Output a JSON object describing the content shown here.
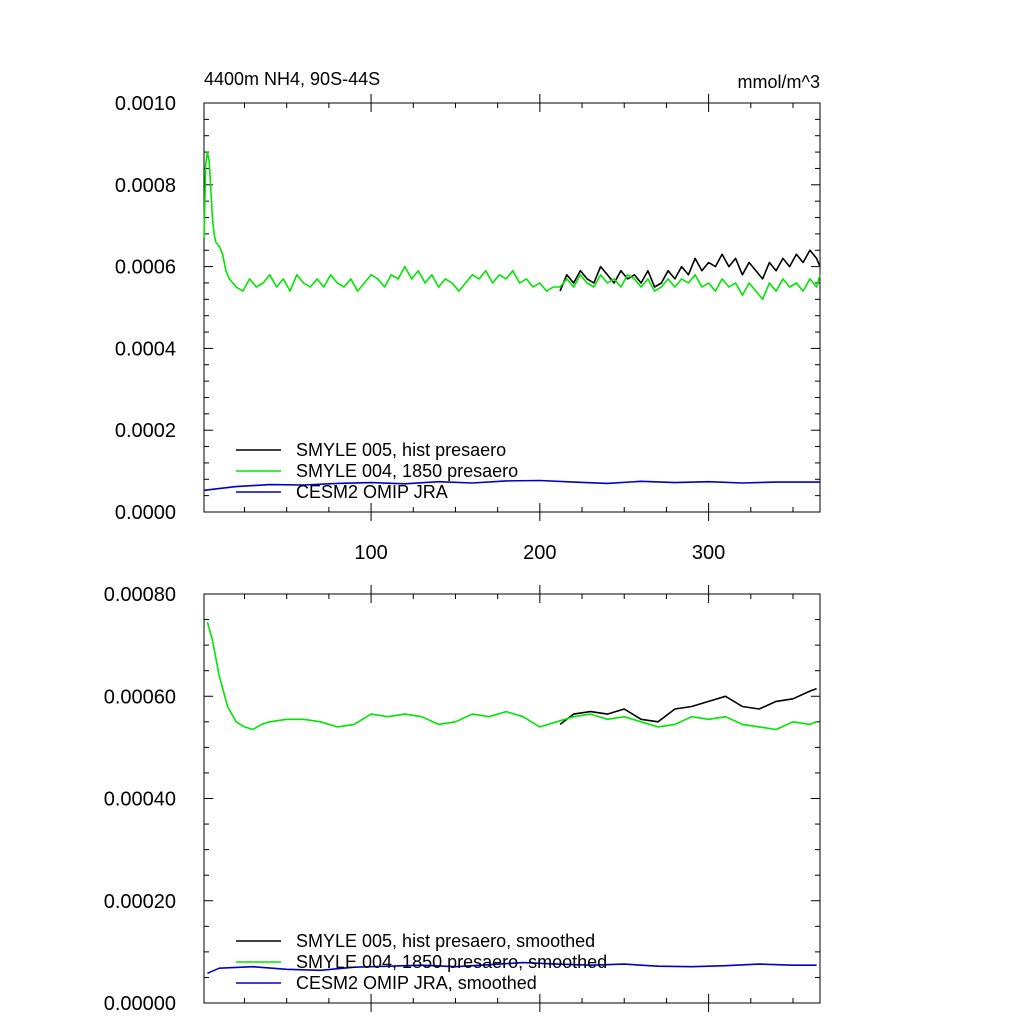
{
  "chart_data": [
    {
      "type": "line",
      "title": "4400m NH4, 90S-44S",
      "units": "mmol/m^3",
      "xlim": [
        1,
        366
      ],
      "ylim": [
        0,
        0.001
      ],
      "xticks": [
        100,
        200,
        300
      ],
      "xtick_labels": [
        "100",
        "200",
        "300"
      ],
      "yticks": [
        0,
        0.0002,
        0.0004,
        0.0006,
        0.0008,
        0.001
      ],
      "ytick_labels": [
        "0.0000",
        "0.0002",
        "0.0004",
        "0.0006",
        "0.0008",
        "0.0010"
      ],
      "legend_position": "bottom-left",
      "series": [
        {
          "name": "SMYLE 005, hist presaero",
          "color": "#000000",
          "x": [
            212,
            216,
            220,
            224,
            228,
            232,
            236,
            240,
            244,
            248,
            252,
            256,
            260,
            264,
            268,
            272,
            276,
            280,
            284,
            288,
            292,
            296,
            300,
            304,
            308,
            312,
            316,
            320,
            324,
            328,
            332,
            336,
            340,
            344,
            348,
            352,
            356,
            360,
            364,
            366
          ],
          "y": [
            0.00054,
            0.00058,
            0.00056,
            0.00059,
            0.00057,
            0.00056,
            0.0006,
            0.00058,
            0.00056,
            0.00059,
            0.00057,
            0.00058,
            0.00056,
            0.00059,
            0.00055,
            0.00056,
            0.00059,
            0.00057,
            0.0006,
            0.00058,
            0.00062,
            0.00059,
            0.00061,
            0.0006,
            0.00063,
            0.0006,
            0.00062,
            0.00058,
            0.00061,
            0.00059,
            0.00057,
            0.00061,
            0.00059,
            0.00062,
            0.0006,
            0.00063,
            0.00061,
            0.00064,
            0.00062,
            0.0006
          ]
        },
        {
          "name": "SMYLE 004, 1850 presaero",
          "color": "#00e600",
          "x": [
            1,
            2,
            3,
            4,
            5,
            6,
            7,
            8,
            10,
            12,
            14,
            16,
            20,
            24,
            28,
            32,
            36,
            40,
            44,
            48,
            52,
            56,
            60,
            64,
            68,
            72,
            76,
            80,
            84,
            88,
            92,
            96,
            100,
            104,
            108,
            112,
            116,
            120,
            124,
            128,
            132,
            136,
            140,
            144,
            148,
            152,
            156,
            160,
            164,
            168,
            172,
            176,
            180,
            184,
            188,
            192,
            196,
            200,
            204,
            208,
            212,
            216,
            220,
            224,
            228,
            232,
            236,
            240,
            244,
            248,
            252,
            256,
            260,
            264,
            268,
            272,
            276,
            280,
            284,
            288,
            292,
            296,
            300,
            304,
            308,
            312,
            316,
            320,
            324,
            328,
            332,
            336,
            340,
            344,
            348,
            352,
            356,
            360,
            364,
            366
          ],
          "y": [
            0.00067,
            0.00085,
            0.00088,
            0.00086,
            0.00079,
            0.00072,
            0.00068,
            0.00066,
            0.00065,
            0.00063,
            0.00059,
            0.00057,
            0.00055,
            0.00054,
            0.00057,
            0.00055,
            0.00056,
            0.00058,
            0.00055,
            0.00057,
            0.00054,
            0.00058,
            0.00056,
            0.00055,
            0.00057,
            0.00055,
            0.00058,
            0.00056,
            0.00055,
            0.00057,
            0.00054,
            0.00056,
            0.00058,
            0.00057,
            0.00055,
            0.00058,
            0.00057,
            0.0006,
            0.00057,
            0.00059,
            0.00056,
            0.00058,
            0.00055,
            0.00057,
            0.00056,
            0.00054,
            0.00056,
            0.00058,
            0.00057,
            0.00059,
            0.00056,
            0.00058,
            0.00057,
            0.00059,
            0.00056,
            0.00057,
            0.00055,
            0.00056,
            0.00054,
            0.00055,
            0.00055,
            0.00057,
            0.00055,
            0.00058,
            0.00056,
            0.00055,
            0.00058,
            0.00056,
            0.00057,
            0.00055,
            0.00058,
            0.00057,
            0.00055,
            0.00057,
            0.00054,
            0.00055,
            0.00057,
            0.00055,
            0.00057,
            0.00056,
            0.00058,
            0.00055,
            0.00056,
            0.00054,
            0.00057,
            0.00055,
            0.00056,
            0.00053,
            0.00056,
            0.00054,
            0.00052,
            0.00056,
            0.00054,
            0.00057,
            0.00055,
            0.00056,
            0.00054,
            0.00057,
            0.00055,
            0.00058
          ]
        },
        {
          "name": "CESM2 OMIP JRA",
          "color": "#0000c8",
          "x": [
            1,
            20,
            40,
            60,
            80,
            100,
            120,
            140,
            160,
            180,
            200,
            220,
            240,
            260,
            280,
            300,
            320,
            340,
            366
          ],
          "y": [
            5.3e-05,
            6.2e-05,
            6.7e-05,
            6.6e-05,
            7e-05,
            7.2e-05,
            6.9e-05,
            7.4e-05,
            7.1e-05,
            7.6e-05,
            7.7e-05,
            7.3e-05,
            7e-05,
            7.5e-05,
            7.2e-05,
            7.4e-05,
            7.1e-05,
            7.3e-05,
            7.3e-05
          ]
        }
      ]
    },
    {
      "type": "line",
      "xlim": [
        1,
        366
      ],
      "ylim": [
        0,
        0.0008
      ],
      "xticks": [
        100,
        200,
        300
      ],
      "yticks": [
        0,
        0.0002,
        0.0004,
        0.0006,
        0.0008
      ],
      "ytick_labels": [
        "0.00000",
        "0.00020",
        "0.00040",
        "0.00060",
        "0.00080"
      ],
      "legend_position": "bottom-left",
      "series": [
        {
          "name": "SMYLE 005, hist presaero, smoothed",
          "color": "#000000",
          "x": [
            212,
            220,
            230,
            240,
            250,
            260,
            270,
            280,
            290,
            300,
            310,
            320,
            330,
            340,
            350,
            360,
            364
          ],
          "y": [
            0.000545,
            0.000565,
            0.00057,
            0.000565,
            0.000575,
            0.000555,
            0.00055,
            0.000575,
            0.00058,
            0.00059,
            0.0006,
            0.00058,
            0.000575,
            0.00059,
            0.000595,
            0.00061,
            0.000615
          ]
        },
        {
          "name": "SMYLE 004, 1850 presaero, smoothed",
          "color": "#00e600",
          "x": [
            3,
            6,
            10,
            15,
            20,
            25,
            30,
            35,
            40,
            50,
            60,
            70,
            80,
            90,
            100,
            110,
            120,
            130,
            140,
            150,
            160,
            170,
            180,
            190,
            200,
            210,
            220,
            230,
            240,
            250,
            260,
            270,
            280,
            290,
            300,
            310,
            320,
            330,
            340,
            350,
            360,
            364
          ],
          "y": [
            0.000745,
            0.00071,
            0.00064,
            0.00058,
            0.00055,
            0.00054,
            0.000535,
            0.000545,
            0.00055,
            0.000555,
            0.000555,
            0.00055,
            0.00054,
            0.000545,
            0.000565,
            0.00056,
            0.000565,
            0.00056,
            0.000545,
            0.00055,
            0.000565,
            0.00056,
            0.00057,
            0.00056,
            0.00054,
            0.00055,
            0.00056,
            0.000565,
            0.000555,
            0.00056,
            0.00055,
            0.00054,
            0.000545,
            0.00056,
            0.000555,
            0.00056,
            0.000545,
            0.00054,
            0.000535,
            0.00055,
            0.000545,
            0.00055
          ]
        },
        {
          "name": "CESM2 OMIP JRA, smoothed",
          "color": "#0000c8",
          "x": [
            3,
            10,
            30,
            50,
            70,
            90,
            110,
            130,
            150,
            170,
            190,
            210,
            230,
            250,
            270,
            290,
            310,
            330,
            350,
            364
          ],
          "y": [
            5.8e-05,
            6.8e-05,
            7.1e-05,
            6.6e-05,
            6.4e-05,
            7e-05,
            7.2e-05,
            7.4e-05,
            7.1e-05,
            7.5e-05,
            7.9e-05,
            7.6e-05,
            7.4e-05,
            7.6e-05,
            7.2e-05,
            7.1e-05,
            7.3e-05,
            7.6e-05,
            7.4e-05,
            7.4e-05
          ]
        }
      ]
    }
  ]
}
